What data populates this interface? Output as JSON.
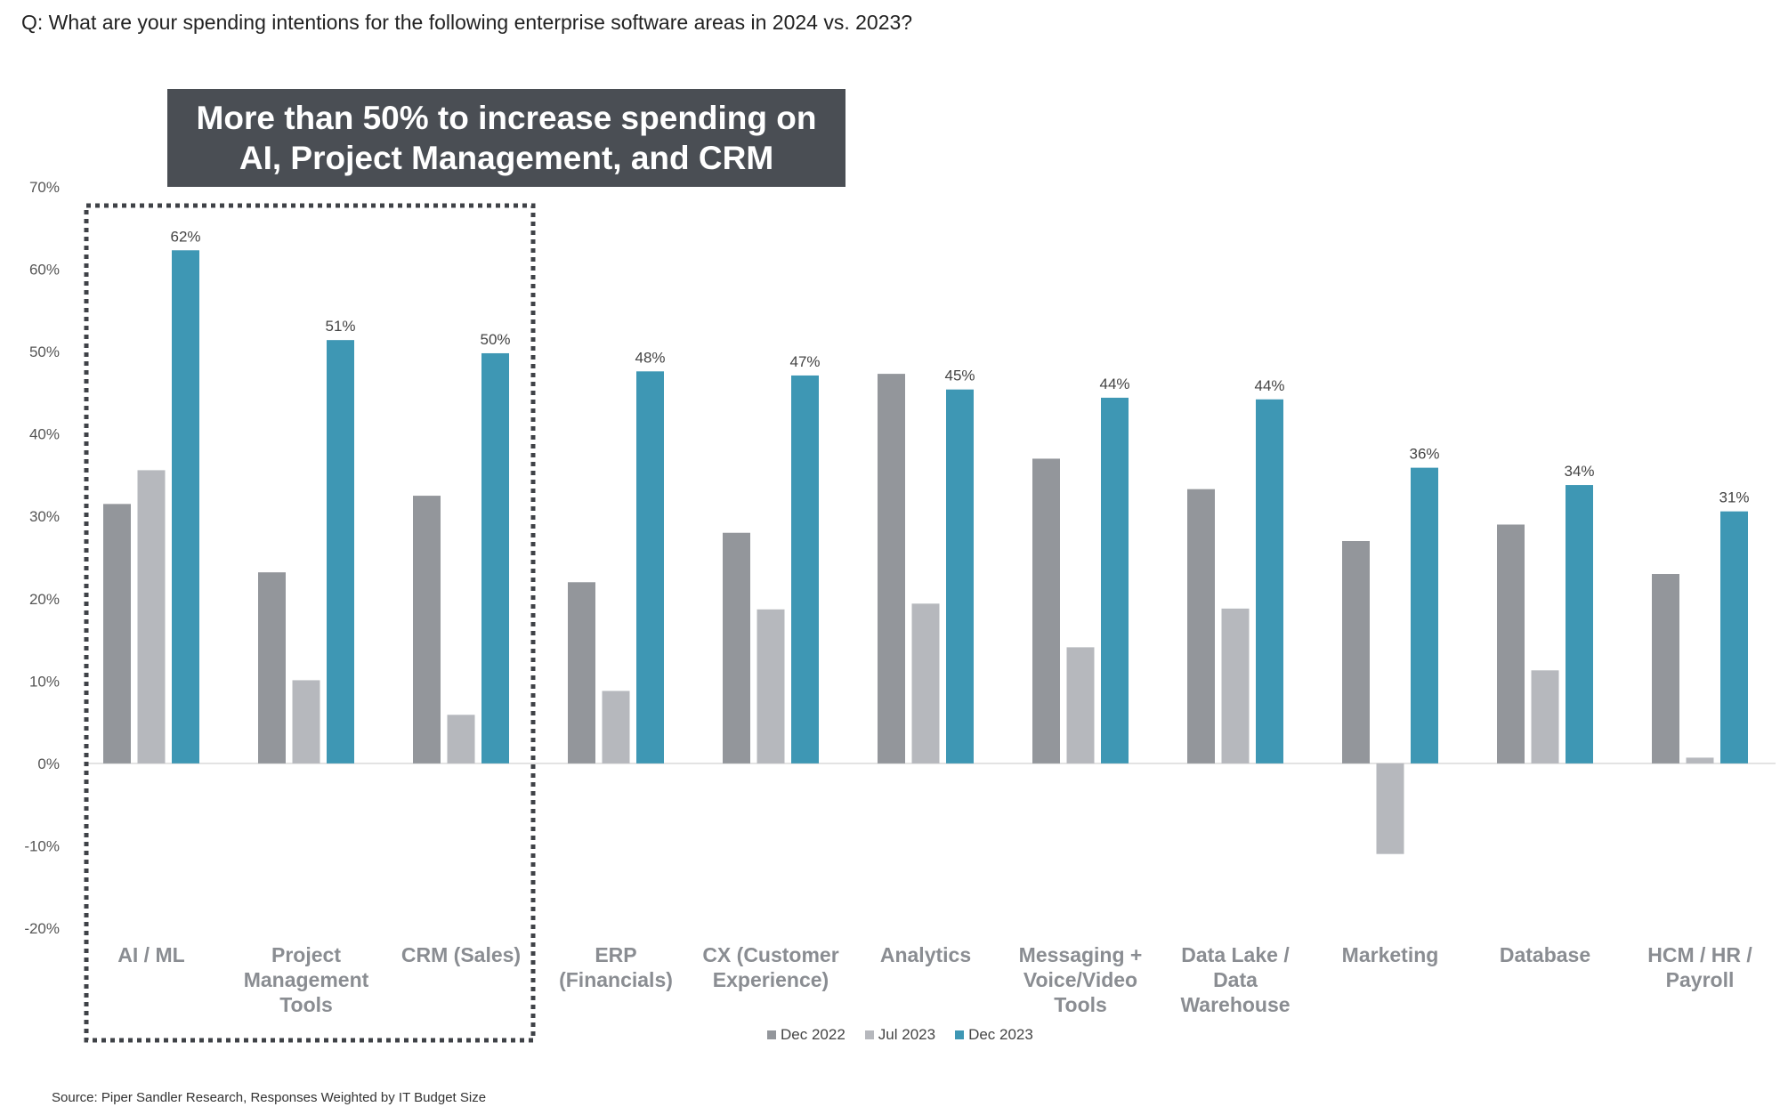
{
  "question": "Q: What are your spending intentions for the following enterprise software areas in 2024 vs. 2023?",
  "callout": {
    "line1": "More than 50% to increase spending on",
    "line2": "AI, Project Management, and CRM"
  },
  "source": "Source: Piper Sandler Research, Responses Weighted by IT Budget Size",
  "colors": {
    "dec2022": "#93969b",
    "jul2023": "#b6b8bd",
    "dec2023": "#3e97b4",
    "highlight_border": "#3f4247"
  },
  "chart_data": {
    "type": "bar",
    "title": "",
    "xlabel": "",
    "ylabel": "",
    "ylim": [
      -20,
      70
    ],
    "yticks": [
      "70%",
      "60%",
      "50%",
      "40%",
      "30%",
      "20%",
      "10%",
      "0%",
      "-10%",
      "-20%"
    ],
    "grid": false,
    "legend_position": "bottom",
    "categories": [
      [
        "AI / ML"
      ],
      [
        "Project",
        "Management",
        "Tools"
      ],
      [
        "CRM (Sales)"
      ],
      [
        "ERP",
        "(Financials)"
      ],
      [
        "CX (Customer",
        "Experience)"
      ],
      [
        "Analytics"
      ],
      [
        "Messaging +",
        "Voice/Video",
        "Tools"
      ],
      [
        "Data Lake /",
        "Data",
        "Warehouse"
      ],
      [
        "Marketing"
      ],
      [
        "Database"
      ],
      [
        "HCM / HR /",
        "Payroll"
      ]
    ],
    "series": [
      {
        "name": "Dec 2022",
        "values": [
          31.5,
          23.2,
          32.5,
          22,
          28,
          47.3,
          37,
          33.3,
          27,
          29,
          23
        ]
      },
      {
        "name": "Jul 2023",
        "values": [
          35.6,
          10.1,
          5.9,
          8.8,
          18.7,
          19.4,
          14.1,
          18.8,
          -11,
          11.3,
          0.7
        ]
      },
      {
        "name": "Dec 2023",
        "values": [
          62.3,
          51.4,
          49.8,
          47.6,
          47.1,
          45.4,
          44.4,
          44.2,
          35.9,
          33.8,
          30.6
        ],
        "labels": [
          "62%",
          "51%",
          "50%",
          "48%",
          "47%",
          "45%",
          "44%",
          "44%",
          "36%",
          "34%",
          "31%"
        ]
      }
    ],
    "highlighted_categories": [
      "AI / ML",
      "Project Management Tools",
      "CRM (Sales)"
    ]
  }
}
